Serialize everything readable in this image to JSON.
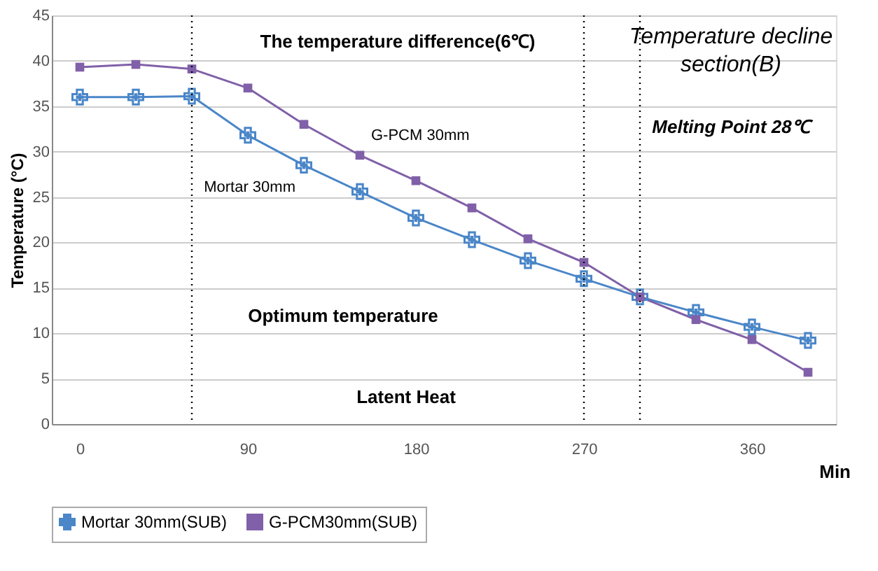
{
  "chart_data": {
    "type": "line",
    "xlabel": "Min",
    "ylabel": "Temperature (°C)",
    "x": [
      0,
      30,
      60,
      90,
      120,
      150,
      180,
      210,
      240,
      270,
      300,
      330,
      360,
      390
    ],
    "series": [
      {
        "name": "Mortar 30mm(SUB)",
        "color": "#4a86c8",
        "marker": "cross",
        "values": [
          36,
          36,
          36.1,
          31.8,
          28.5,
          25.6,
          22.7,
          20.3,
          18,
          16,
          14,
          12.3,
          10.7,
          9.2
        ]
      },
      {
        "name": "G-PCM30mm(SUB)",
        "color": "#8060a8",
        "marker": "square",
        "values": [
          39.3,
          39.6,
          39.1,
          37,
          33,
          29.6,
          26.8,
          23.8,
          20.4,
          17.8,
          14,
          11.5,
          9.3,
          5.7
        ]
      }
    ],
    "xlim": [
      -15,
      405
    ],
    "xticks": [
      0,
      90,
      180,
      270,
      360
    ],
    "ylim": [
      0,
      45
    ],
    "yticks": [
      0,
      5,
      10,
      15,
      20,
      25,
      30,
      35,
      40,
      45
    ],
    "grid": "y",
    "legend": "bottom",
    "line_style": "solid",
    "ref_lines": [
      {
        "axis": "x",
        "value": 60,
        "line_style": "dotted",
        "color": "#000000"
      },
      {
        "axis": "x",
        "value": 270,
        "line_style": "dotted",
        "color": "#000000"
      },
      {
        "axis": "x",
        "value": 300,
        "line_style": "dotted",
        "color": "#000000"
      }
    ],
    "annotations": [
      "The temperature difference(6℃)",
      {
        "text": "G-PCM 30mm",
        "x": 150,
        "y": 29.6
      },
      {
        "text": "Mortar 30mm",
        "x": 120,
        "y": 28.5
      },
      "Optimum temperature",
      "Latent Heat",
      "Temperature decline section(B)",
      "Melting Point 28℃"
    ]
  }
}
